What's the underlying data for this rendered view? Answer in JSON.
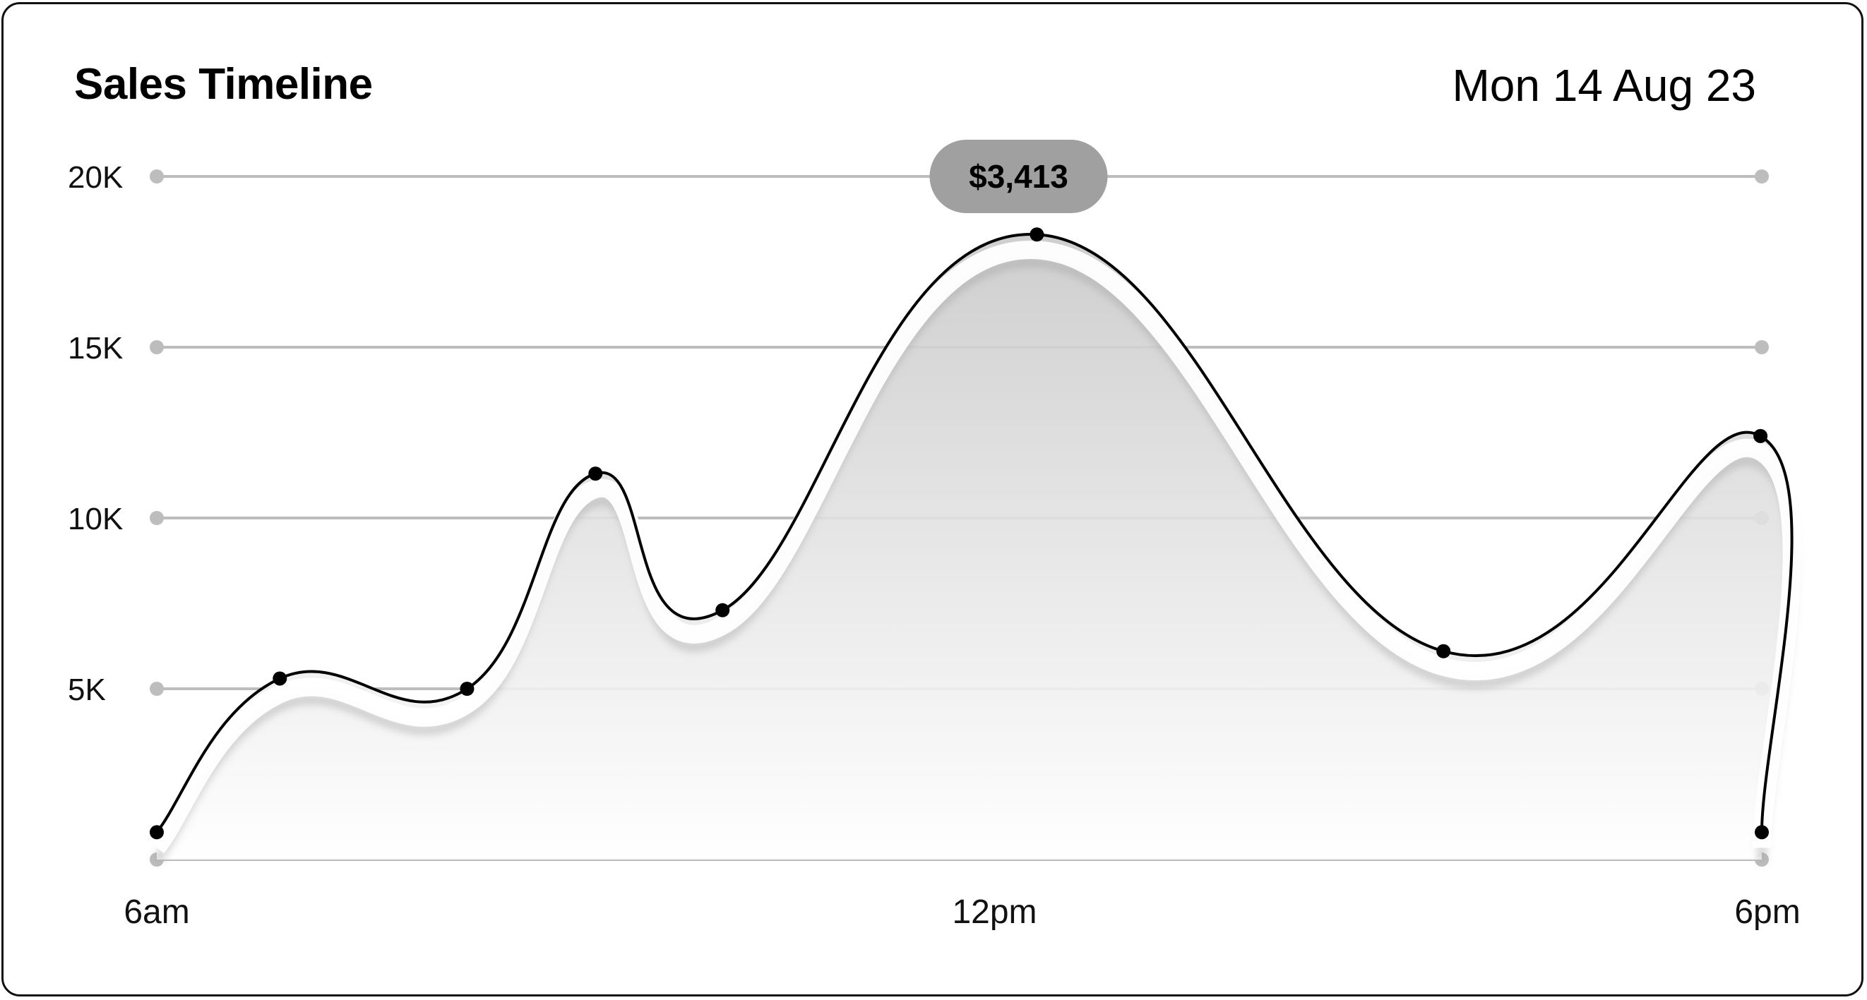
{
  "header": {
    "title": "Sales Timeline",
    "date": "Mon 14 Aug 23"
  },
  "chart_data": {
    "type": "area",
    "title": "Sales Timeline",
    "xlabel": "",
    "ylabel": "",
    "ylim": [
      0,
      20000
    ],
    "y_ticks": [
      {
        "label": "20K",
        "value": 20000
      },
      {
        "label": "15K",
        "value": 15000
      },
      {
        "label": "10K",
        "value": 10000
      },
      {
        "label": "5K",
        "value": 5000
      }
    ],
    "x_ticks": [
      "6am",
      "12pm",
      "6pm"
    ],
    "xlim": [
      6,
      18
    ],
    "grid": true,
    "series": [
      {
        "x": [
          6,
          6.92,
          8.32,
          9.28,
          10.23,
          12.58,
          15.62,
          17.99,
          18
        ],
        "values": [
          800,
          5300,
          5000,
          11300,
          7300,
          18300,
          6100,
          12400,
          800
        ]
      }
    ],
    "tooltip": {
      "label": "$3,413",
      "x": 12.0
    },
    "colors": {
      "line": "#000000",
      "grid": "#bdbdbd",
      "tooltip_bg": "#a0a0a0",
      "area": "#d4d4d4"
    }
  }
}
